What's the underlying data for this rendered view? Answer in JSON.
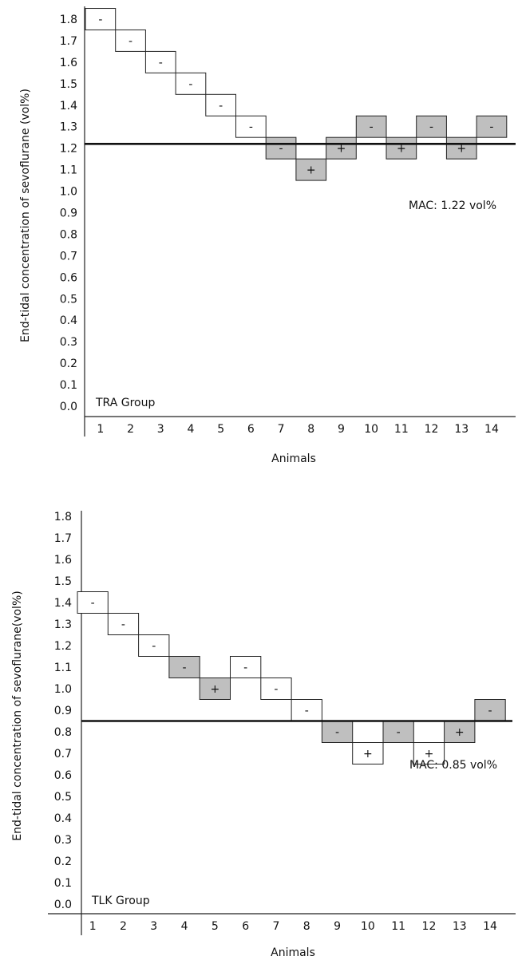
{
  "chart_data": [
    {
      "type": "bar",
      "group_label": "TRA Group",
      "ylabel": "End-tidal concentration of sevoflurane (vol%)",
      "xlabel": "Animals",
      "y_ticks": [
        "0.0",
        "0.1",
        "0.2",
        "0.3",
        "0.4",
        "0.5",
        "0.6",
        "0.7",
        "0.8",
        "0.9",
        "1.0",
        "1.1",
        "1.2",
        "1.3",
        "1.4",
        "1.5",
        "1.6",
        "1.7",
        "1.8"
      ],
      "ylim": [
        0.0,
        1.8
      ],
      "categories": [
        "1",
        "2",
        "3",
        "4",
        "5",
        "6",
        "7",
        "8",
        "9",
        "10",
        "11",
        "12",
        "13",
        "14"
      ],
      "mac_value": 1.22,
      "mac_label": "MAC: 1.22 vol%",
      "legend": {
        "no_movement_fill": "#ffffff",
        "movement_fill": "#bfbfbf"
      },
      "series": [
        {
          "values": [
            1.8,
            1.7,
            1.6,
            1.5,
            1.4,
            1.3,
            1.2,
            1.1,
            1.2,
            1.3,
            1.2,
            1.3,
            1.2,
            1.3
          ],
          "responses": [
            "-",
            "-",
            "-",
            "-",
            "-",
            "-",
            "-",
            "+",
            "+",
            "-",
            "+",
            "-",
            "+",
            "-"
          ]
        }
      ]
    },
    {
      "type": "bar",
      "group_label": "TLK Group",
      "ylabel": "End-tidal concentration of sevoflurane(vol%)",
      "xlabel": "Animals",
      "y_ticks": [
        "0.0",
        "0.1",
        "0.2",
        "0.3",
        "0.4",
        "0.5",
        "0.6",
        "0.7",
        "0.8",
        "0.9",
        "1.0",
        "1.1",
        "1.2",
        "1.3",
        "1.4",
        "1.5",
        "1.6",
        "1.7",
        "1.8"
      ],
      "ylim": [
        0.0,
        1.8
      ],
      "categories": [
        "1",
        "2",
        "3",
        "4",
        "5",
        "6",
        "7",
        "8",
        "9",
        "10",
        "11",
        "12",
        "13",
        "14"
      ],
      "mac_value": 0.85,
      "mac_label": "MAC: 0.85 vol%",
      "legend": {
        "no_movement_fill": "#ffffff",
        "movement_fill": "#bfbfbf"
      },
      "series": [
        {
          "values": [
            1.4,
            1.3,
            1.2,
            1.1,
            1.0,
            1.1,
            1.0,
            0.9,
            0.8,
            0.7,
            0.8,
            0.7,
            0.8,
            0.9
          ],
          "responses": [
            "-",
            "-",
            "-",
            "-",
            "+",
            "-",
            "-",
            "-",
            "-",
            "+",
            "-",
            "+",
            "+",
            "-"
          ]
        }
      ]
    }
  ]
}
